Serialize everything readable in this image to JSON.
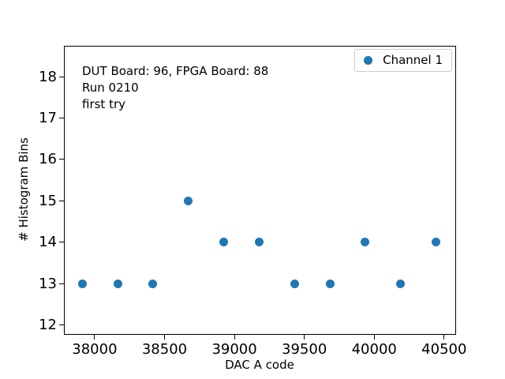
{
  "figure": {
    "background": "#ffffff",
    "text_color": "#000000",
    "annotation_lines": [
      "DUT Board: 96, FPGA Board: 88",
      "Run 0210",
      "first try"
    ],
    "legend": {
      "label": "Channel 1",
      "marker_color": "#1f77b4",
      "position": "upper right"
    }
  },
  "chart_data": {
    "type": "scatter",
    "title": "",
    "xlabel": "DAC A code",
    "ylabel": "# Histogram Bins",
    "annotation": "DUT Board: 96, FPGA Board: 88\nRun 0210\nfirst try",
    "legend_entries": [
      "Channel 1"
    ],
    "legend_position": "upper right",
    "grid": false,
    "marker": "circle",
    "xlim": [
      37786,
      40580
    ],
    "ylim": [
      11.78,
      18.73
    ],
    "xticks": [
      38000,
      38500,
      39000,
      39500,
      40000,
      40500
    ],
    "yticks": [
      12,
      13,
      14,
      15,
      16,
      17,
      18
    ],
    "series": [
      {
        "name": "Channel 1",
        "color": "#1f77b4",
        "points": [
          {
            "x": 37912,
            "y": 13
          },
          {
            "x": 38165,
            "y": 13
          },
          {
            "x": 38418,
            "y": 13
          },
          {
            "x": 38671,
            "y": 15
          },
          {
            "x": 38924,
            "y": 14
          },
          {
            "x": 39177,
            "y": 14
          },
          {
            "x": 39430,
            "y": 13
          },
          {
            "x": 39683,
            "y": 13
          },
          {
            "x": 39936,
            "y": 14
          },
          {
            "x": 40189,
            "y": 13
          },
          {
            "x": 40442,
            "y": 14
          }
        ]
      }
    ]
  }
}
